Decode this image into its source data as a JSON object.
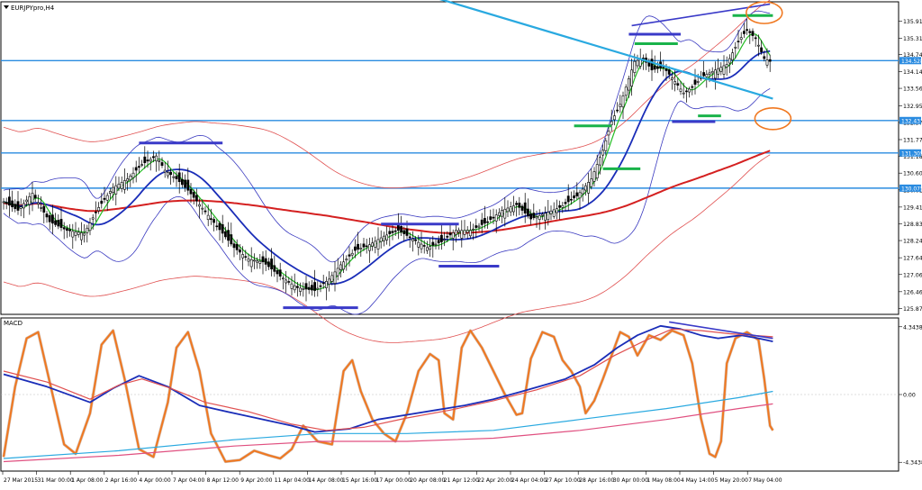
{
  "chart_data": [
    {
      "type": "candlestick",
      "title": "EURJPYpro,H4",
      "symbol": "EURJPYpro",
      "timeframe": "H4",
      "price_levels": {
        "current_price": 134.528,
        "support_resistance": [
          132.437,
          131.305,
          130.075
        ]
      },
      "y_ticks": [
        "135.910",
        "135.310",
        "134.740",
        "134.140",
        "133.560",
        "132.955",
        "132.370",
        "131.770",
        "131.185",
        "130.600",
        "130.015",
        "129.415",
        "128.830",
        "128.245",
        "127.645",
        "127.060",
        "126.460",
        "125.875"
      ],
      "y_tick_values": [
        135.91,
        135.31,
        134.74,
        134.14,
        133.56,
        132.955,
        132.37,
        131.77,
        131.185,
        130.6,
        130.015,
        129.415,
        128.83,
        128.245,
        127.645,
        127.06,
        126.46,
        125.875
      ],
      "ylim": [
        125.7,
        136.55
      ],
      "grid": false,
      "x_ticks": [
        "27 Mar 2015",
        "31 Mar 00:00",
        "1 Apr 08:00",
        "2 Apr 16:00",
        "4 Apr 00:00",
        "7 Apr 04:00",
        "8 Apr 12:00",
        "9 Apr 20:00",
        "11 Apr 04:00",
        "14 Apr 08:00",
        "15 Apr 16:00",
        "17 Apr 00:00",
        "20 Apr 08:00",
        "21 Apr 12:00",
        "22 Apr 20:00",
        "24 Apr 04:00",
        "27 Apr 10:00",
        "28 Apr 16:00",
        "30 Apr 00:00",
        "1 May 08:00",
        "4 May 14:00",
        "5 May 20:00",
        "7 May 04:00"
      ],
      "close_path": [
        [
          0,
          129.6
        ],
        [
          5,
          129.3
        ],
        [
          10,
          129.9
        ],
        [
          16,
          128.9
        ],
        [
          22,
          128.6
        ],
        [
          28,
          128.5
        ],
        [
          33,
          129.4
        ],
        [
          38,
          130.1
        ],
        [
          43,
          130.4
        ],
        [
          48,
          130.9
        ],
        [
          53,
          131.2
        ],
        [
          56,
          130.7
        ],
        [
          60,
          130.4
        ],
        [
          64,
          130.0
        ],
        [
          68,
          129.5
        ],
        [
          72,
          129.0
        ],
        [
          76,
          128.5
        ],
        [
          80,
          128.0
        ],
        [
          85,
          127.6
        ],
        [
          90,
          127.5
        ],
        [
          96,
          127.0
        ],
        [
          102,
          126.6
        ],
        [
          108,
          126.5
        ],
        [
          113,
          126.9
        ],
        [
          117,
          127.4
        ],
        [
          122,
          127.9
        ],
        [
          127,
          128.1
        ],
        [
          132,
          128.4
        ],
        [
          137,
          128.6
        ],
        [
          142,
          128.3
        ],
        [
          147,
          128.0
        ],
        [
          152,
          128.2
        ],
        [
          157,
          128.6
        ],
        [
          162,
          128.6
        ],
        [
          168,
          128.9
        ],
        [
          173,
          129.3
        ],
        [
          178,
          129.5
        ],
        [
          183,
          129.0
        ],
        [
          188,
          129.2
        ],
        [
          193,
          129.4
        ],
        [
          199,
          129.8
        ],
        [
          204,
          130.4
        ],
        [
          208,
          131.4
        ],
        [
          211,
          132.4
        ],
        [
          214,
          133.0
        ],
        [
          217,
          133.9
        ],
        [
          219,
          134.5
        ],
        [
          222,
          134.6
        ],
        [
          225,
          134.2
        ],
        [
          229,
          134.3
        ],
        [
          233,
          133.8
        ],
        [
          236,
          133.4
        ],
        [
          239,
          133.6
        ],
        [
          243,
          134.0
        ],
        [
          247,
          134.2
        ],
        [
          251,
          134.4
        ],
        [
          255,
          135.2
        ],
        [
          258,
          135.6
        ],
        [
          261,
          135.3
        ],
        [
          264,
          134.6
        ],
        [
          266,
          134.5
        ]
      ],
      "series": [
        {
          "name": "",
          "role": "fast_ma",
          "color": "#22bb22"
        },
        {
          "name": "",
          "role": "mid_ma",
          "color": "#1a2db8"
        },
        {
          "name": "",
          "role": "slow_ma",
          "color": "#d42020"
        },
        {
          "name": "",
          "role": "bollinger_bands",
          "color": "#3a3ac0"
        },
        {
          "name": "",
          "role": "envelope_bands",
          "color": "#e05050"
        }
      ],
      "annotations": {
        "resistance_marks": [
          {
            "i0": 47,
            "i1": 76,
            "y": 131.65,
            "color": "#3a3ac8"
          },
          {
            "i0": 131,
            "i1": 158,
            "y": 128.82,
            "color": "#3a3ac8"
          },
          {
            "i0": 217,
            "i1": 235,
            "y": 135.45,
            "color": "#3a3ac8"
          },
          {
            "i0": 253,
            "i1": 267,
            "y": 136.1,
            "color": "#19b34a"
          },
          {
            "i0": 219,
            "i1": 234,
            "y": 135.12,
            "color": "#19b34a"
          },
          {
            "i0": 198,
            "i1": 211,
            "y": 132.25,
            "color": "#19b34a"
          }
        ],
        "support_marks": [
          {
            "i0": 97,
            "i1": 123,
            "y": 125.9,
            "color": "#3a3ac8"
          },
          {
            "i0": 151,
            "i1": 172,
            "y": 127.35,
            "color": "#3a3ac8"
          },
          {
            "i0": 232,
            "i1": 247,
            "y": 132.4,
            "color": "#3a3ac8"
          },
          {
            "i0": 241,
            "i1": 249,
            "y": 132.6,
            "color": "#19b34a"
          },
          {
            "i0": 208,
            "i1": 221,
            "y": 130.75,
            "color": "#19b34a"
          }
        ],
        "trendlines": [
          {
            "i0": 124,
            "y0": 137.5,
            "i1": 267,
            "y1": 133.2,
            "color": "#29a9e0",
            "width": 2.2
          },
          {
            "i0": 218,
            "y0": 135.75,
            "i1": 266,
            "y1": 136.5,
            "color": "#3a3ac8",
            "width": 1.6
          }
        ],
        "circles": [
          {
            "i": 264,
            "y": 136.2,
            "color": "#f07820"
          },
          {
            "i": 267,
            "y": 132.5,
            "color": "#f07820"
          }
        ]
      }
    },
    {
      "type": "line",
      "title": "MACD",
      "y_ticks": [
        "4.3438",
        "0.00",
        "-4.3438"
      ],
      "y_tick_values": [
        4.3438,
        0,
        -4.3438
      ],
      "ylim": [
        -4.85,
        4.85
      ],
      "x_ticks": [
        "27 Mar 2015",
        "31 Mar 00:00",
        "1 Apr 08:00",
        "2 Apr 16:00",
        "4 Apr 00:00",
        "7 Apr 04:00",
        "8 Apr 12:00",
        "9 Apr 20:00",
        "11 Apr 04:00",
        "14 Apr 08:00",
        "15 Apr 16:00",
        "17 Apr 00:00",
        "20 Apr 08:00",
        "21 Apr 12:00",
        "22 Apr 20:00",
        "24 Apr 04:00",
        "27 Apr 10:00",
        "28 Apr 16:00",
        "30 Apr 00:00",
        "1 May 08:00",
        "4 May 14:00",
        "5 May 20:00",
        "7 May 04:00"
      ],
      "series": [
        {
          "name": "",
          "role": "stochastic",
          "color": "#f07820",
          "points": [
            [
              0,
              -4.0
            ],
            [
              4,
              0.5
            ],
            [
              8,
              3.6
            ],
            [
              12,
              4.0
            ],
            [
              16,
              0.8
            ],
            [
              21,
              -3.2
            ],
            [
              25,
              -3.8
            ],
            [
              30,
              -1.2
            ],
            [
              34,
              3.2
            ],
            [
              38,
              4.1
            ],
            [
              42,
              1.0
            ],
            [
              47,
              -3.5
            ],
            [
              52,
              -4.0
            ],
            [
              57,
              -0.5
            ],
            [
              60,
              3.0
            ],
            [
              64,
              4.0
            ],
            [
              68,
              1.5
            ],
            [
              72,
              -2.5
            ],
            [
              77,
              -4.3
            ],
            [
              82,
              -4.2
            ],
            [
              87,
              -3.6
            ],
            [
              92,
              -3.9
            ],
            [
              96,
              -4.1
            ],
            [
              100,
              -3.5
            ],
            [
              104,
              -2.0
            ],
            [
              109,
              -3.0
            ],
            [
              114,
              -3.2
            ],
            [
              118,
              1.5
            ],
            [
              121,
              2.2
            ],
            [
              124,
              0.2
            ],
            [
              128,
              -1.6
            ],
            [
              132,
              -2.5
            ],
            [
              136,
              -3.0
            ],
            [
              140,
              -1.2
            ],
            [
              144,
              1.5
            ],
            [
              148,
              2.6
            ],
            [
              151,
              2.2
            ],
            [
              153,
              -1.2
            ],
            [
              156,
              -1.6
            ],
            [
              159,
              3.0
            ],
            [
              162,
              4.1
            ],
            [
              166,
              3.0
            ],
            [
              170,
              1.5
            ],
            [
              174,
              0.0
            ],
            [
              178,
              -1.3
            ],
            [
              180,
              -1.2
            ],
            [
              183,
              2.3
            ],
            [
              187,
              4.0
            ],
            [
              191,
              3.7
            ],
            [
              194,
              2.2
            ],
            [
              197,
              1.5
            ],
            [
              200,
              0.5
            ],
            [
              202,
              -1.2
            ],
            [
              205,
              -0.4
            ],
            [
              208,
              1.0
            ],
            [
              211,
              2.5
            ],
            [
              214,
              4.0
            ],
            [
              217,
              3.7
            ],
            [
              220,
              2.5
            ],
            [
              224,
              3.8
            ],
            [
              228,
              3.5
            ],
            [
              232,
              4.1
            ],
            [
              236,
              3.8
            ],
            [
              239,
              2.0
            ],
            [
              242,
              -1.5
            ],
            [
              245,
              -3.8
            ],
            [
              247,
              -4.0
            ],
            [
              249,
              -3.0
            ],
            [
              251,
              2.0
            ],
            [
              254,
              3.6
            ],
            [
              258,
              4.0
            ],
            [
              262,
              3.5
            ],
            [
              264,
              1.0
            ],
            [
              266,
              -2.0
            ],
            [
              267,
              -2.3
            ]
          ]
        },
        {
          "name": "",
          "role": "macd_main",
          "color": "#1a2db8",
          "points": [
            [
              0,
              1.3
            ],
            [
              15,
              0.5
            ],
            [
              30,
              -0.5
            ],
            [
              38,
              0.4
            ],
            [
              47,
              1.2
            ],
            [
              57,
              0.5
            ],
            [
              68,
              -0.7
            ],
            [
              80,
              -1.2
            ],
            [
              100,
              -2.0
            ],
            [
              108,
              -2.4
            ],
            [
              120,
              -2.2
            ],
            [
              130,
              -1.6
            ],
            [
              140,
              -1.3
            ],
            [
              150,
              -1.0
            ],
            [
              160,
              -0.7
            ],
            [
              170,
              -0.3
            ],
            [
              180,
              0.2
            ],
            [
              195,
              1.0
            ],
            [
              205,
              1.9
            ],
            [
              213,
              3.0
            ],
            [
              220,
              3.8
            ],
            [
              228,
              4.4
            ],
            [
              235,
              4.2
            ],
            [
              242,
              3.8
            ],
            [
              248,
              3.6
            ],
            [
              256,
              3.8
            ],
            [
              262,
              3.6
            ],
            [
              267,
              3.4
            ]
          ]
        },
        {
          "name": "",
          "role": "macd_signal",
          "color": "#e05050",
          "points": [
            [
              0,
              1.5
            ],
            [
              15,
              0.8
            ],
            [
              30,
              -0.3
            ],
            [
              40,
              0.6
            ],
            [
              48,
              1.0
            ],
            [
              58,
              0.4
            ],
            [
              70,
              -0.5
            ],
            [
              85,
              -1.1
            ],
            [
              100,
              -1.9
            ],
            [
              112,
              -2.3
            ],
            [
              125,
              -2.1
            ],
            [
              140,
              -1.5
            ],
            [
              155,
              -1.0
            ],
            [
              170,
              -0.4
            ],
            [
              185,
              0.3
            ],
            [
              200,
              1.2
            ],
            [
              212,
              2.5
            ],
            [
              222,
              3.4
            ],
            [
              232,
              4.2
            ],
            [
              242,
              4.1
            ],
            [
              252,
              3.9
            ],
            [
              267,
              3.7
            ]
          ]
        },
        {
          "name": "",
          "role": "long_ma_1",
          "color": "#29a9e0",
          "points": [
            [
              0,
              -4.1
            ],
            [
              40,
              -3.6
            ],
            [
              80,
              -2.9
            ],
            [
              110,
              -2.5
            ],
            [
              140,
              -2.5
            ],
            [
              170,
              -2.3
            ],
            [
              200,
              -1.6
            ],
            [
              230,
              -0.9
            ],
            [
              255,
              -0.2
            ],
            [
              267,
              0.2
            ]
          ]
        },
        {
          "name": "",
          "role": "long_ma_2",
          "color": "#e05080",
          "points": [
            [
              0,
              -4.3
            ],
            [
              40,
              -3.9
            ],
            [
              80,
              -3.3
            ],
            [
              110,
              -3.0
            ],
            [
              140,
              -3.0
            ],
            [
              170,
              -2.8
            ],
            [
              200,
              -2.3
            ],
            [
              230,
              -1.6
            ],
            [
              255,
              -0.9
            ],
            [
              267,
              -0.6
            ]
          ]
        }
      ],
      "annotations": {
        "divergence_line": {
          "i0": 231,
          "y0": 4.65,
          "i1": 267,
          "y1": 3.6,
          "color": "#3a3ac8"
        }
      }
    }
  ]
}
